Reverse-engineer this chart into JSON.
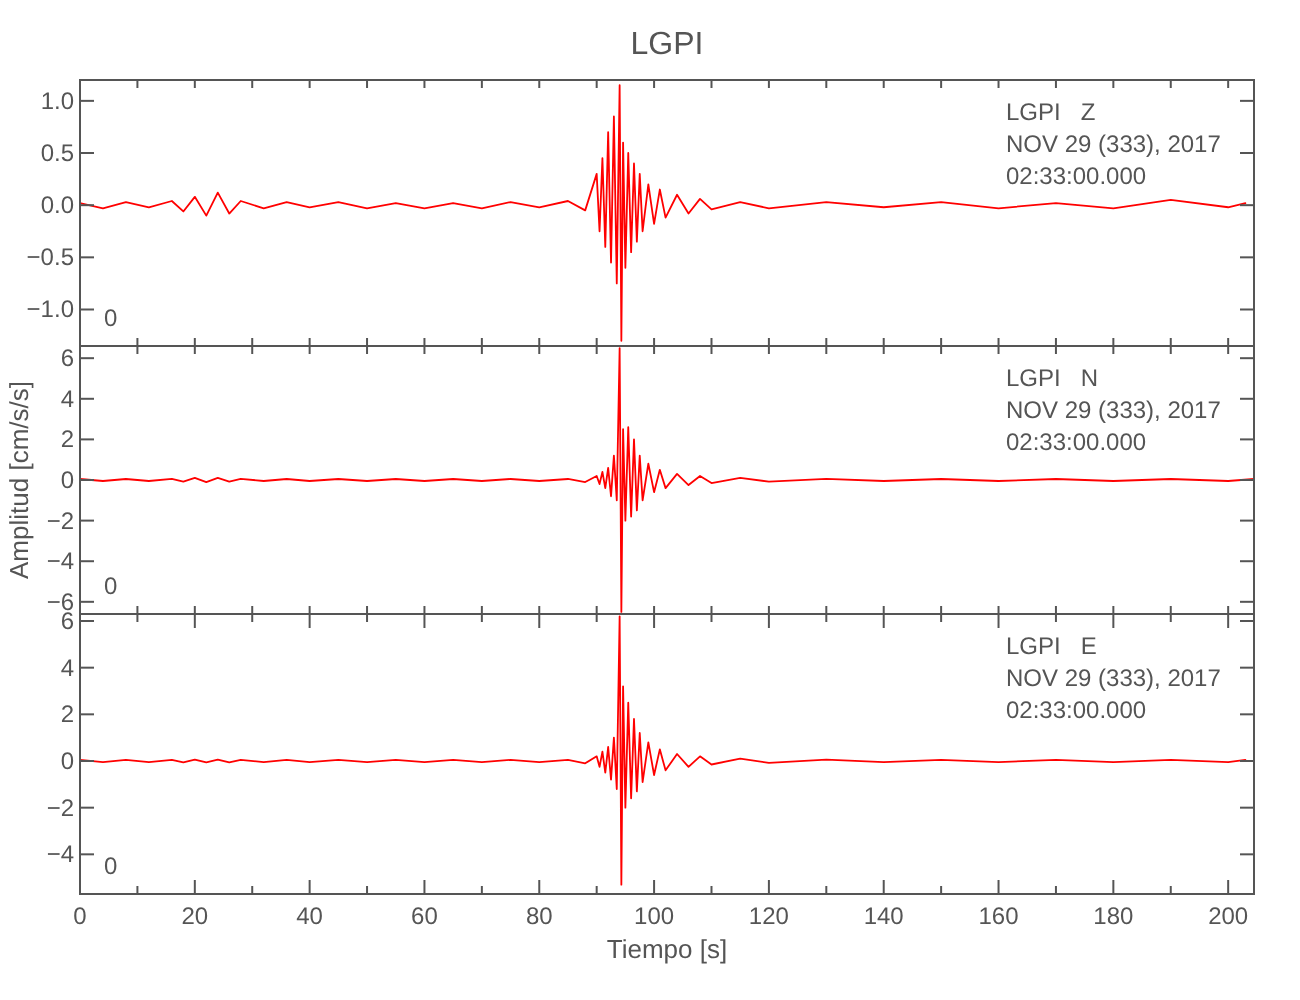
{
  "chart_data": [
    {
      "type": "line",
      "title": "LGPI",
      "tick_labels": "y",
      "xlim": [
        0,
        204.5
      ],
      "ylim": [
        -1.35,
        1.2
      ],
      "xticks": [
        {
          "value": 0,
          "label": null
        },
        {
          "value": 10,
          "label": null
        },
        {
          "value": 20,
          "label": null
        },
        {
          "value": 30,
          "label": null
        },
        {
          "value": 40,
          "label": null
        },
        {
          "value": 50,
          "label": null
        },
        {
          "value": 60,
          "label": null
        },
        {
          "value": 70,
          "label": null
        },
        {
          "value": 80,
          "label": null
        },
        {
          "value": 90,
          "label": null
        },
        {
          "value": 100,
          "label": null
        },
        {
          "value": 110,
          "label": null
        },
        {
          "value": 120,
          "label": null
        },
        {
          "value": 130,
          "label": null
        },
        {
          "value": 140,
          "label": null
        },
        {
          "value": 150,
          "label": null
        },
        {
          "value": 160,
          "label": null
        },
        {
          "value": 170,
          "label": null
        },
        {
          "value": 180,
          "label": null
        },
        {
          "value": 190,
          "label": null
        },
        {
          "value": 200,
          "label": null
        }
      ],
      "yticks": [
        {
          "value": -1,
          "label": "−1.0"
        },
        {
          "value": -0.5,
          "label": "−0.5"
        },
        {
          "value": 0,
          "label": "0.0"
        },
        {
          "value": 0.5,
          "label": "0.5"
        },
        {
          "value": 1,
          "label": "1.0"
        }
      ],
      "annotations": [
        "LGPI   Z",
        "NOV 29 (333), 2017",
        "02:33:00.000",
        "0"
      ],
      "x": [
        0,
        4,
        8,
        12,
        16,
        18,
        20,
        22,
        24,
        26,
        28,
        32,
        36,
        40,
        45,
        50,
        55,
        60,
        65,
        70,
        75,
        80,
        85,
        88,
        90,
        90.5,
        91,
        91.5,
        92,
        92.5,
        93,
        93.5,
        94,
        94.3,
        94.6,
        95,
        95.5,
        96,
        96.5,
        97,
        97.5,
        98,
        99,
        100,
        101,
        102,
        104,
        106,
        108,
        110,
        115,
        120,
        130,
        140,
        150,
        160,
        170,
        180,
        190,
        200,
        203
      ],
      "series": [
        {
          "color": "#ff0000",
          "values": [
            0.02,
            -0.03,
            0.03,
            -0.02,
            0.04,
            -0.06,
            0.08,
            -0.1,
            0.12,
            -0.08,
            0.04,
            -0.03,
            0.03,
            -0.02,
            0.03,
            -0.03,
            0.02,
            -0.03,
            0.02,
            -0.03,
            0.03,
            -0.02,
            0.04,
            -0.05,
            0.3,
            -0.25,
            0.45,
            -0.4,
            0.7,
            -0.55,
            0.85,
            -0.75,
            1.15,
            -1.3,
            0.6,
            -0.6,
            0.5,
            -0.45,
            0.4,
            -0.35,
            0.3,
            -0.25,
            0.2,
            -0.18,
            0.15,
            -0.12,
            0.1,
            -0.08,
            0.06,
            -0.04,
            0.03,
            -0.03,
            0.03,
            -0.02,
            0.03,
            -0.03,
            0.02,
            -0.03,
            0.05,
            -0.02,
            0.02
          ]
        }
      ]
    },
    {
      "type": "line",
      "ylabel": "Amplitud [cm/s/s]",
      "tick_labels": "y",
      "xlim": [
        0,
        204.5
      ],
      "ylim": [
        -6.6,
        6.6
      ],
      "xticks": [
        {
          "value": 0,
          "label": null
        },
        {
          "value": 10,
          "label": null
        },
        {
          "value": 20,
          "label": null
        },
        {
          "value": 30,
          "label": null
        },
        {
          "value": 40,
          "label": null
        },
        {
          "value": 50,
          "label": null
        },
        {
          "value": 60,
          "label": null
        },
        {
          "value": 70,
          "label": null
        },
        {
          "value": 80,
          "label": null
        },
        {
          "value": 90,
          "label": null
        },
        {
          "value": 100,
          "label": null
        },
        {
          "value": 110,
          "label": null
        },
        {
          "value": 120,
          "label": null
        },
        {
          "value": 130,
          "label": null
        },
        {
          "value": 140,
          "label": null
        },
        {
          "value": 150,
          "label": null
        },
        {
          "value": 160,
          "label": null
        },
        {
          "value": 170,
          "label": null
        },
        {
          "value": 180,
          "label": null
        },
        {
          "value": 190,
          "label": null
        },
        {
          "value": 200,
          "label": null
        }
      ],
      "yticks": [
        {
          "value": -6,
          "label": "−6"
        },
        {
          "value": -4,
          "label": "−4"
        },
        {
          "value": -2,
          "label": "−2"
        },
        0,
        2,
        4,
        6
      ],
      "annotations": [
        "LGPI   N",
        "NOV 29 (333), 2017",
        "02:33:00.000",
        "0"
      ],
      "x": [
        0,
        4,
        8,
        12,
        16,
        18,
        20,
        22,
        24,
        26,
        28,
        32,
        36,
        40,
        45,
        50,
        55,
        60,
        65,
        70,
        75,
        80,
        85,
        88,
        90,
        90.5,
        91,
        91.5,
        92,
        92.5,
        93,
        93.5,
        94,
        94.3,
        94.6,
        95,
        95.5,
        96,
        96.5,
        97,
        97.5,
        98,
        99,
        100,
        101,
        102,
        104,
        106,
        108,
        110,
        115,
        120,
        130,
        140,
        150,
        160,
        170,
        180,
        190,
        200,
        204.5
      ],
      "series": [
        {
          "color": "#ff0000",
          "values": [
            0.05,
            -0.05,
            0.05,
            -0.05,
            0.06,
            -0.08,
            0.1,
            -0.1,
            0.1,
            -0.08,
            0.06,
            -0.05,
            0.05,
            -0.05,
            0.05,
            -0.05,
            0.05,
            -0.05,
            0.05,
            -0.05,
            0.05,
            -0.05,
            0.05,
            -0.1,
            0.2,
            -0.2,
            0.4,
            -0.4,
            0.6,
            -0.8,
            1.2,
            -1.0,
            6.5,
            -6.5,
            2.5,
            -2.0,
            2.6,
            -1.8,
            2.0,
            -1.5,
            1.2,
            -1.0,
            0.8,
            -0.6,
            0.5,
            -0.4,
            0.3,
            -0.25,
            0.2,
            -0.15,
            0.1,
            -0.08,
            0.06,
            -0.05,
            0.05,
            -0.05,
            0.05,
            -0.05,
            0.05,
            -0.05,
            0.05
          ]
        }
      ]
    },
    {
      "type": "line",
      "xlabel": "Tiempo [s]",
      "xlim": [
        0,
        204.5
      ],
      "ylim": [
        -5.7,
        6.3
      ],
      "xticks": [
        0,
        {
          "value": 10,
          "label": null
        },
        20,
        {
          "value": 30,
          "label": null
        },
        40,
        {
          "value": 50,
          "label": null
        },
        60,
        {
          "value": 70,
          "label": null
        },
        80,
        {
          "value": 90,
          "label": null
        },
        100,
        {
          "value": 110,
          "label": null
        },
        120,
        {
          "value": 130,
          "label": null
        },
        140,
        {
          "value": 150,
          "label": null
        },
        160,
        {
          "value": 170,
          "label": null
        },
        180,
        {
          "value": 190,
          "label": null
        },
        200
      ],
      "yticks": [
        {
          "value": -4,
          "label": "−4"
        },
        {
          "value": -2,
          "label": "−2"
        },
        0,
        2,
        4,
        6
      ],
      "annotations": [
        "LGPI   E",
        "NOV 29 (333), 2017",
        "02:33:00.000",
        "0"
      ],
      "x": [
        0,
        4,
        8,
        12,
        16,
        18,
        20,
        22,
        24,
        26,
        28,
        32,
        36,
        40,
        45,
        50,
        55,
        60,
        65,
        70,
        75,
        80,
        85,
        88,
        90,
        90.5,
        91,
        91.5,
        92,
        92.5,
        93,
        93.5,
        94,
        94.3,
        94.6,
        95,
        95.5,
        96,
        96.5,
        97,
        97.5,
        98,
        99,
        100,
        101,
        102,
        104,
        106,
        108,
        110,
        115,
        120,
        130,
        140,
        150,
        160,
        170,
        180,
        190,
        200,
        203
      ],
      "series": [
        {
          "color": "#ff0000",
          "values": [
            0.05,
            -0.05,
            0.05,
            -0.05,
            0.05,
            -0.06,
            0.06,
            -0.06,
            0.06,
            -0.06,
            0.05,
            -0.05,
            0.05,
            -0.05,
            0.05,
            -0.05,
            0.05,
            -0.05,
            0.05,
            -0.05,
            0.05,
            -0.05,
            0.05,
            -0.1,
            0.2,
            -0.25,
            0.4,
            -0.5,
            0.6,
            -0.8,
            1.0,
            -1.2,
            6.2,
            -5.3,
            3.2,
            -2.0,
            2.5,
            -1.6,
            1.8,
            -1.3,
            1.2,
            -0.9,
            0.8,
            -0.6,
            0.5,
            -0.4,
            0.3,
            -0.25,
            0.2,
            -0.15,
            0.1,
            -0.08,
            0.06,
            -0.05,
            0.05,
            -0.05,
            0.05,
            -0.05,
            0.05,
            -0.05,
            0.05
          ]
        }
      ]
    }
  ]
}
